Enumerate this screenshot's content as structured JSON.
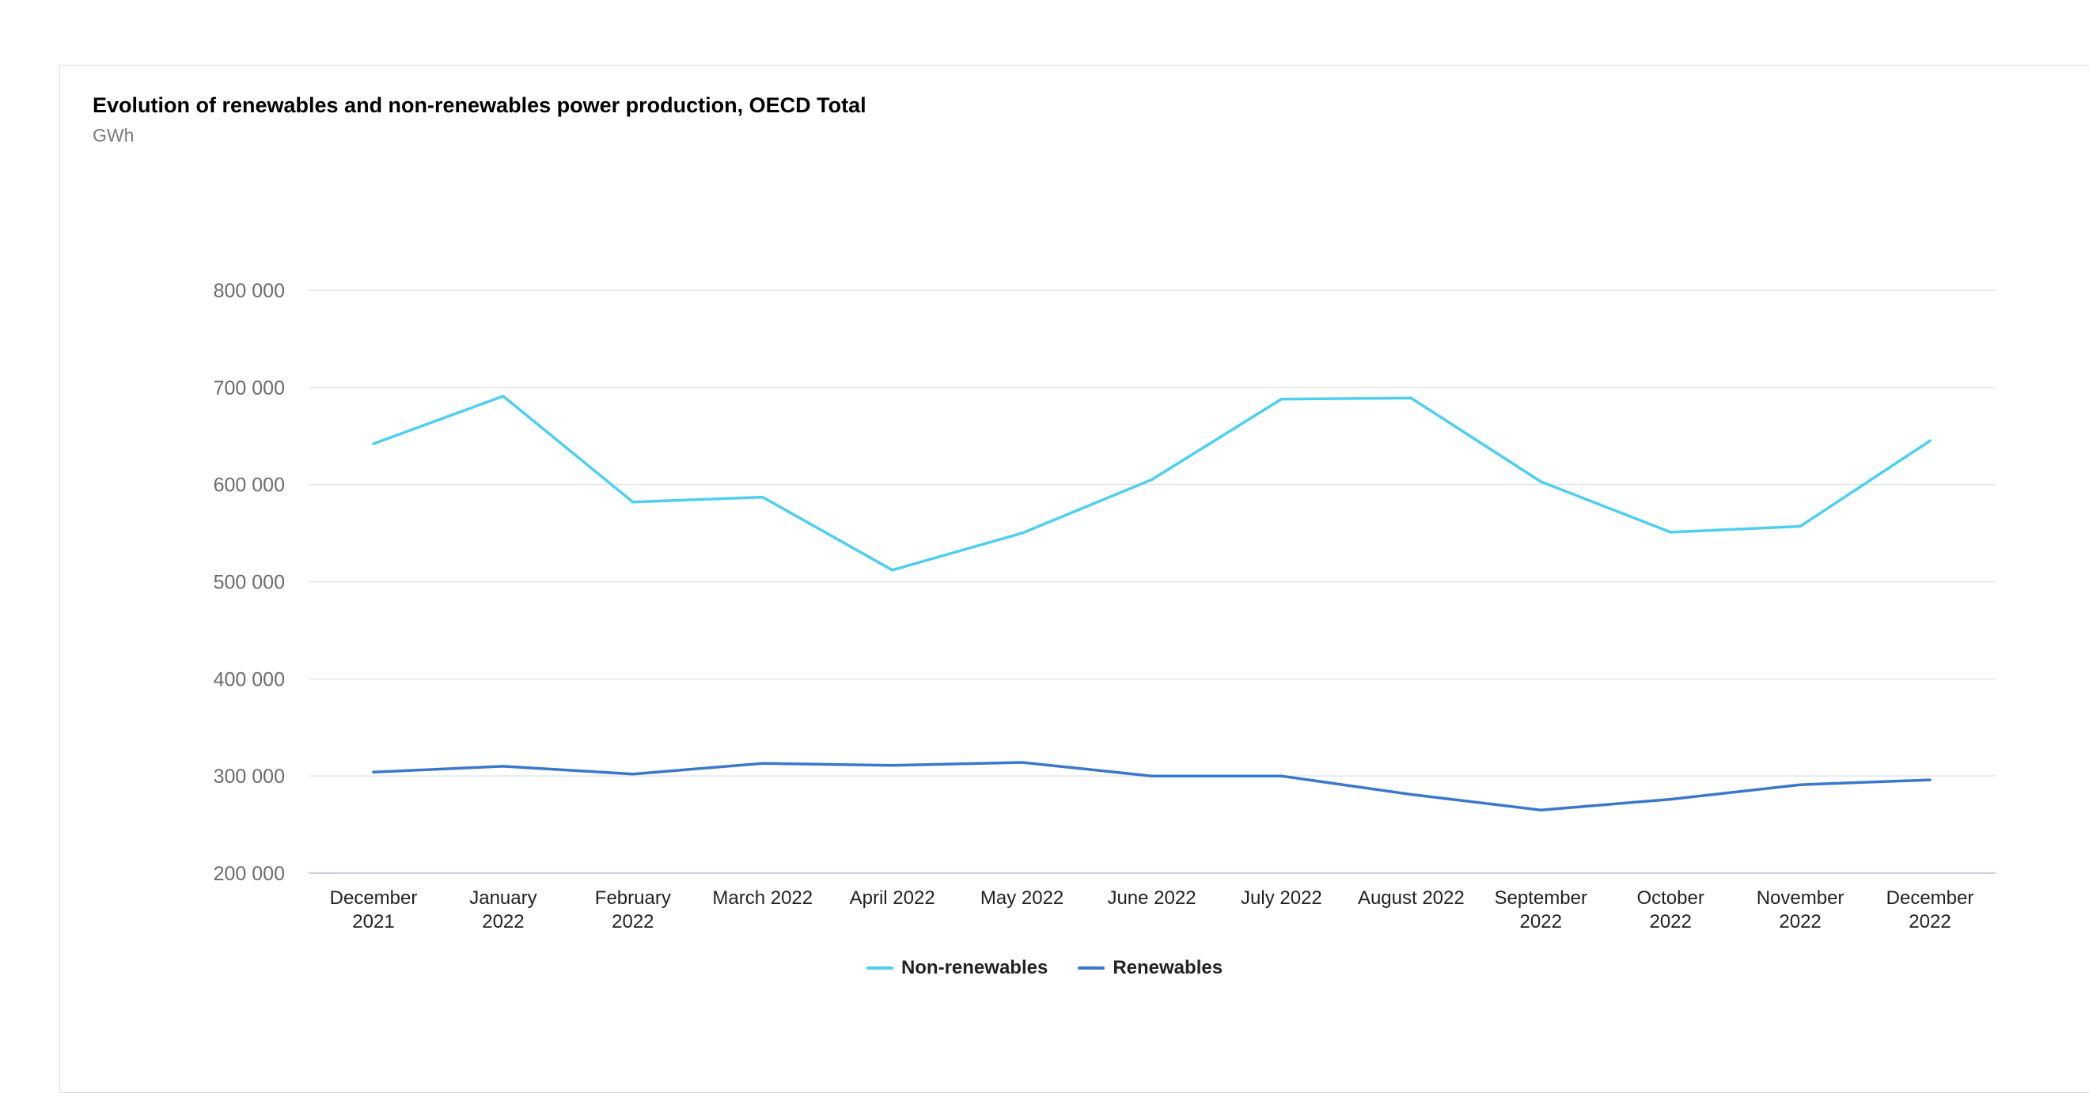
{
  "title": "Evolution of renewables and non-renewables power production, OECD Total",
  "subtitle": "GWh",
  "colors": {
    "non_renewables": "#4dcff2",
    "renewables": "#3a78cc",
    "grid": "#e2e4e8",
    "axis": "#c9cfe0",
    "tick_text": "#6b6b6b",
    "category_text": "#222222"
  },
  "chart_data": {
    "type": "line",
    "title": "Evolution of renewables and non-renewables power production, OECD Total",
    "ylabel": "GWh",
    "xlabel": "",
    "ylim": [
      200000,
      800000
    ],
    "yticks": [
      200000,
      300000,
      400000,
      500000,
      600000,
      700000,
      800000
    ],
    "ytick_labels": [
      "200 000",
      "300 000",
      "400 000",
      "500 000",
      "600 000",
      "700 000",
      "800 000"
    ],
    "grid": true,
    "legend": "bottom-center",
    "categories": [
      [
        "December",
        "2021"
      ],
      [
        "January",
        "2022"
      ],
      [
        "February",
        "2022"
      ],
      [
        "March 2022"
      ],
      [
        "April 2022"
      ],
      [
        "May 2022"
      ],
      [
        "June 2022"
      ],
      [
        "July 2022"
      ],
      [
        "August 2022"
      ],
      [
        "September",
        "2022"
      ],
      [
        "October",
        "2022"
      ],
      [
        "November",
        "2022"
      ],
      [
        "December",
        "2022"
      ]
    ],
    "series": [
      {
        "name": "Non-renewables",
        "values": [
          642000,
          691000,
          582000,
          587000,
          512000,
          550000,
          605000,
          688000,
          689000,
          603000,
          551000,
          557000,
          645000
        ]
      },
      {
        "name": "Renewables",
        "values": [
          304000,
          310000,
          302000,
          313000,
          311000,
          314000,
          300000,
          300000,
          281000,
          265000,
          276000,
          291000,
          296000
        ]
      }
    ]
  },
  "legend": {
    "items": [
      {
        "label": "Non-renewables"
      },
      {
        "label": "Renewables"
      }
    ]
  }
}
